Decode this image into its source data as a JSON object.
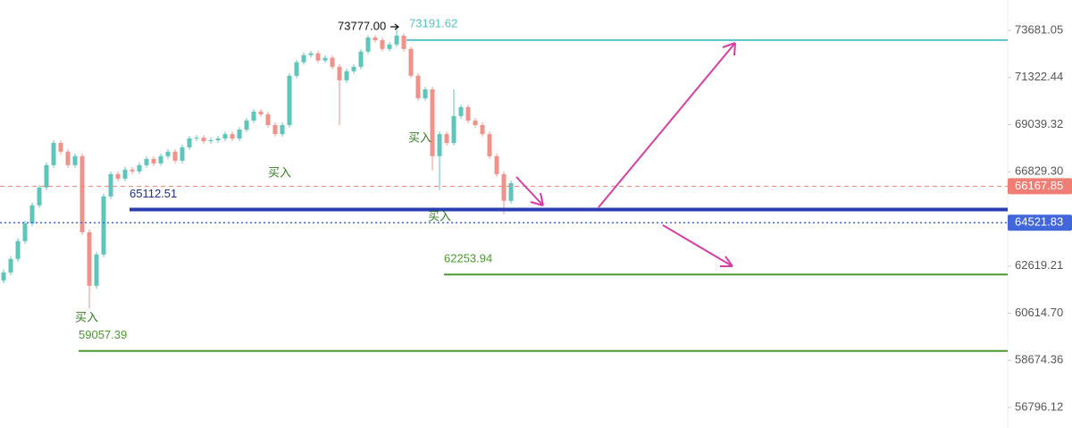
{
  "chart_data": {
    "type": "candlestick",
    "log_scale": true,
    "up_color": "#5ec4bc",
    "down_color": "#f0928a",
    "ylim": [
      55996,
      75243
    ],
    "yticks": [
      73681.05,
      71322.44,
      69039.32,
      {
        "value": 66829.3,
        "label": "66829.30"
      },
      62619.21,
      {
        "value": 60614.7,
        "label": "60614.70"
      },
      58674.36,
      56796.12
    ],
    "open": [
      62000,
      62343,
      62928,
      63708,
      64488,
      65299,
      66109,
      67136,
      68175,
      67760,
      67136,
      67553,
      64098,
      61773,
      63123,
      65704,
      66721,
      66514,
      66929,
      66846,
      67136,
      67426,
      67219,
      67553,
      67760,
      67345,
      67968,
      68383,
      68420,
      68258,
      68300,
      68383,
      68590,
      68383,
      68805,
      69235,
      69665,
      69536,
      69020,
      68590,
      69020,
      71409,
      72077,
      72432,
      72521,
      72165,
      72299,
      71854,
      71186,
      71632,
      71854,
      72610,
      73320,
      73186,
      72743,
      72966,
      73409,
      72743,
      71409,
      70311,
      70741,
      67553,
      68590,
      68175,
      69450,
      69880,
      69235,
      69020,
      68590,
      67553,
      66721,
      65502
    ],
    "high": [
      62463,
      63048,
      63828,
      64608,
      65419,
      66229,
      67256,
      68295,
      68295,
      67880,
      67673,
      67673,
      64218,
      63243,
      65824,
      66841,
      66841,
      67049,
      67049,
      67256,
      67546,
      67546,
      67673,
      67880,
      67880,
      68088,
      68503,
      68540,
      68540,
      68420,
      68503,
      68710,
      68710,
      68925,
      69355,
      69785,
      69785,
      69656,
      69140,
      69140,
      71529,
      72197,
      72552,
      72641,
      72641,
      72419,
      72419,
      71974,
      71752,
      71974,
      72730,
      73440,
      73440,
      73306,
      73086,
      73777,
      73529,
      72863,
      71529,
      70861,
      70861,
      68710,
      68710,
      70741,
      70000,
      70000,
      69355,
      69140,
      68710,
      67673,
      66841,
      66427
    ],
    "low": [
      61880,
      62223,
      62808,
      63588,
      64368,
      65179,
      65989,
      67016,
      67640,
      67016,
      67016,
      63978,
      60820,
      61653,
      63003,
      65584,
      66394,
      66394,
      66726,
      66726,
      67016,
      67099,
      67099,
      67433,
      67225,
      67225,
      67848,
      68263,
      68138,
      68138,
      68180,
      68263,
      68263,
      68263,
      68685,
      69115,
      69416,
      68900,
      68470,
      68470,
      68900,
      71289,
      71957,
      72312,
      72045,
      72045,
      71734,
      69020,
      71066,
      71512,
      71734,
      72490,
      73066,
      72623,
      72623,
      72846,
      72623,
      71289,
      70191,
      70191,
      66900,
      66000,
      68055,
      68055,
      69330,
      69115,
      68900,
      68470,
      67433,
      66601,
      64900,
      65382
    ],
    "close": [
      62343,
      62928,
      63708,
      64488,
      65299,
      66109,
      67136,
      68175,
      67760,
      67136,
      67553,
      64098,
      61773,
      63123,
      65704,
      66721,
      66514,
      66929,
      66846,
      67136,
      67426,
      67219,
      67553,
      67760,
      67345,
      67968,
      68383,
      68420,
      68258,
      68300,
      68383,
      68590,
      68383,
      68805,
      69235,
      69665,
      69536,
      69020,
      68590,
      69020,
      71409,
      72077,
      72432,
      72521,
      72165,
      72299,
      71854,
      71186,
      71632,
      71854,
      72610,
      73320,
      73186,
      72743,
      72966,
      73409,
      72743,
      71409,
      70311,
      70741,
      67553,
      68590,
      68175,
      69450,
      69880,
      69235,
      69020,
      68590,
      67553,
      66721,
      65502,
      66307
    ],
    "levels": [
      {
        "value": 73191.62,
        "color": "#56c2c8",
        "style": "solid",
        "badge": false
      },
      {
        "value": 66167.85,
        "color": "#ef7f74",
        "style": "dashed",
        "badge": true
      },
      {
        "value": 65112.51,
        "color": "#2a3eb1",
        "style": "solid",
        "badge": false
      },
      {
        "value": 64521.83,
        "color": "#4267d8",
        "style": "dotted",
        "badge": true
      },
      {
        "value": 62253.94,
        "color": "#4a9a2e",
        "style": "solid",
        "badge": false
      },
      {
        "value": 59057.39,
        "color": "#4a9a2e",
        "style": "solid",
        "badge": false
      }
    ],
    "high_label": "73777.00",
    "annotations": [
      "买入",
      "买入",
      "买入",
      "买入"
    ]
  }
}
